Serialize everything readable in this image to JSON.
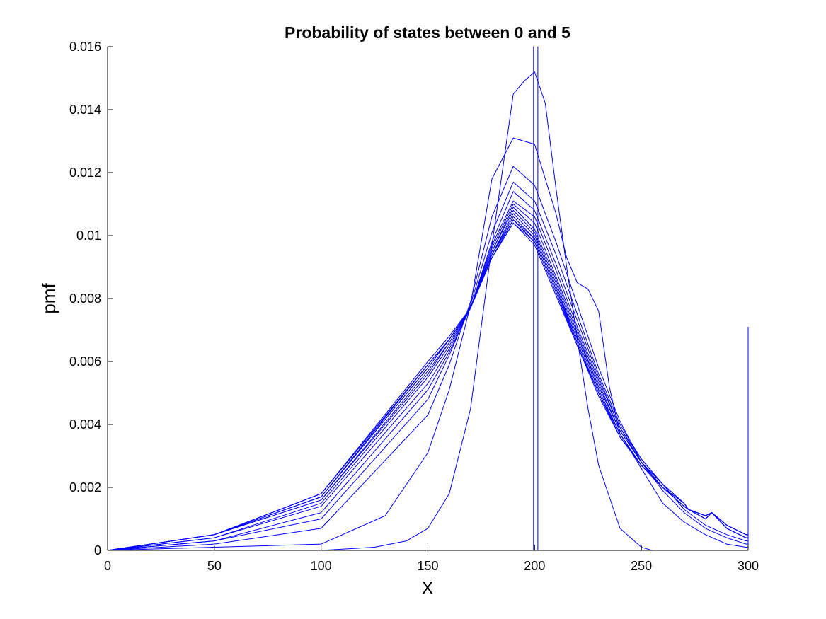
{
  "chart_data": {
    "type": "line",
    "title": "Probability of states between 0 and 5",
    "xlabel": "X",
    "ylabel": "pmf",
    "xlim": [
      0,
      300
    ],
    "ylim": [
      0,
      0.016
    ],
    "xticks": [
      0,
      50,
      100,
      150,
      200,
      250,
      300
    ],
    "xtick_labels": [
      "0",
      "50",
      "100",
      "150",
      "200",
      "250",
      "300"
    ],
    "yticks": [
      0,
      0.002,
      0.004,
      0.006,
      0.008,
      0.01,
      0.012,
      0.014,
      0.016
    ],
    "ytick_labels": [
      "0",
      "0.002",
      "0.004",
      "0.006",
      "0.008",
      "0.01",
      "0.012",
      "0.014",
      "0.016"
    ],
    "grid": false,
    "line_color": "#0000ff",
    "series": [
      {
        "x": [
          0,
          199.5,
          199.5,
          199.5,
          300
        ],
        "y": [
          0,
          0,
          0.016,
          0,
          0
        ]
      },
      {
        "x": [
          0,
          201.5,
          201.5,
          201.5,
          300
        ],
        "y": [
          0,
          0,
          0.016,
          0,
          0
        ]
      },
      {
        "x": [
          0,
          50,
          100,
          125,
          140,
          150,
          160,
          170,
          180,
          190,
          195,
          200,
          205,
          210,
          215,
          220,
          225,
          230,
          240,
          250,
          255,
          260,
          270,
          280,
          290,
          299,
          300,
          300
        ],
        "y": [
          0,
          0,
          0,
          0.0001,
          0.0003,
          0.0007,
          0.0018,
          0.0045,
          0.0097,
          0.0145,
          0.0149,
          0.0152,
          0.0142,
          0.0115,
          0.009,
          0.0067,
          0.0045,
          0.0027,
          0.0007,
          0.0001,
          0,
          0,
          0,
          0,
          0,
          0,
          0,
          0
        ]
      },
      {
        "x": [
          0,
          50,
          100,
          130,
          150,
          160,
          170,
          175,
          180,
          190,
          200,
          210,
          215,
          220,
          225,
          230,
          235,
          240,
          250,
          260,
          270,
          280,
          290,
          299,
          300,
          300
        ],
        "y": [
          0,
          0.0001,
          0.0002,
          0.0011,
          0.0031,
          0.0051,
          0.0078,
          0.0098,
          0.0118,
          0.0131,
          0.0129,
          0.0107,
          0.0093,
          0.0085,
          0.0083,
          0.0076,
          0.0052,
          0.0037,
          0.0026,
          0.0015,
          0.0009,
          0.0005,
          0.0002,
          0.0001,
          0.0001,
          0.0071
        ]
      },
      {
        "x": [
          0,
          50,
          100,
          150,
          160,
          170,
          180,
          190,
          200,
          210,
          220,
          230,
          240,
          250,
          260,
          270,
          280,
          290,
          299,
          300,
          300
        ],
        "y": [
          0,
          0.0002,
          0.0007,
          0.0043,
          0.0059,
          0.0079,
          0.0106,
          0.0122,
          0.0116,
          0.0098,
          0.0078,
          0.0058,
          0.0041,
          0.0028,
          0.0019,
          0.0012,
          0.0007,
          0.0004,
          0.0002,
          0.0002,
          0.0046
        ]
      },
      {
        "x": [
          0,
          50,
          100,
          150,
          160,
          170,
          180,
          190,
          200,
          210,
          220,
          230,
          240,
          250,
          260,
          270,
          280,
          290,
          299,
          300,
          300
        ],
        "y": [
          0,
          0.0003,
          0.001,
          0.0048,
          0.0062,
          0.0078,
          0.0101,
          0.0117,
          0.0111,
          0.0094,
          0.0075,
          0.0056,
          0.004,
          0.0029,
          0.0021,
          0.0013,
          0.0008,
          0.0005,
          0.0003,
          0.0003,
          0.0015
        ]
      },
      {
        "x": [
          0,
          50,
          100,
          150,
          160,
          170,
          180,
          190,
          200,
          210,
          220,
          230,
          240,
          250,
          260,
          270,
          272,
          280,
          283,
          290,
          299,
          300
        ],
        "y": [
          0,
          0.0003,
          0.0012,
          0.0051,
          0.0063,
          0.0077,
          0.0098,
          0.0114,
          0.0108,
          0.0091,
          0.0073,
          0.0055,
          0.0039,
          0.0029,
          0.0021,
          0.0015,
          0.0013,
          0.0011,
          0.0012,
          0.0008,
          0.0005,
          0.0005
        ]
      },
      {
        "x": [
          0,
          50,
          100,
          150,
          160,
          170,
          180,
          190,
          200,
          210,
          220,
          230,
          240,
          250,
          260,
          270,
          272,
          280,
          283,
          290,
          299,
          300
        ],
        "y": [
          0,
          0.0004,
          0.0014,
          0.0053,
          0.0064,
          0.0077,
          0.0097,
          0.0111,
          0.0106,
          0.0089,
          0.0071,
          0.0054,
          0.0039,
          0.0028,
          0.0021,
          0.0015,
          0.0013,
          0.0011,
          0.0012,
          0.0008,
          0.0005,
          0.0005
        ]
      },
      {
        "x": [
          0,
          50,
          100,
          150,
          160,
          170,
          180,
          190,
          200,
          210,
          220,
          230,
          240,
          250,
          260,
          270,
          272,
          280,
          283,
          290,
          299,
          300
        ],
        "y": [
          0,
          0.0004,
          0.0015,
          0.0055,
          0.0065,
          0.0077,
          0.0096,
          0.011,
          0.0104,
          0.0087,
          0.007,
          0.0053,
          0.0038,
          0.0028,
          0.0021,
          0.0015,
          0.0013,
          0.0011,
          0.0012,
          0.0008,
          0.0005,
          0.0005
        ]
      },
      {
        "x": [
          0,
          50,
          100,
          150,
          160,
          170,
          180,
          190,
          200,
          210,
          220,
          230,
          240,
          250,
          260,
          270,
          272,
          280,
          283,
          290,
          299,
          300
        ],
        "y": [
          0,
          0.0005,
          0.0016,
          0.0056,
          0.0066,
          0.0077,
          0.0095,
          0.0109,
          0.0102,
          0.0086,
          0.0069,
          0.0052,
          0.0038,
          0.0028,
          0.002,
          0.0015,
          0.0013,
          0.0011,
          0.0012,
          0.0008,
          0.0005,
          0.0005
        ]
      },
      {
        "x": [
          0,
          50,
          100,
          150,
          160,
          170,
          180,
          190,
          200,
          210,
          220,
          230,
          240,
          250,
          260,
          270,
          272,
          280,
          283,
          290,
          299,
          300
        ],
        "y": [
          0,
          0.0005,
          0.0016,
          0.0057,
          0.0066,
          0.0077,
          0.0095,
          0.0108,
          0.0101,
          0.0085,
          0.0068,
          0.0052,
          0.0038,
          0.0028,
          0.002,
          0.0015,
          0.0013,
          0.0011,
          0.0012,
          0.0008,
          0.0005,
          0.0005
        ]
      },
      {
        "x": [
          0,
          50,
          100,
          150,
          160,
          170,
          180,
          190,
          200,
          210,
          220,
          230,
          240,
          250,
          260,
          270,
          272,
          280,
          283,
          290,
          299,
          300
        ],
        "y": [
          0,
          0.0005,
          0.0017,
          0.0058,
          0.0067,
          0.0077,
          0.0094,
          0.0107,
          0.01,
          0.0084,
          0.0067,
          0.0051,
          0.0037,
          0.0027,
          0.002,
          0.0014,
          0.0013,
          0.001,
          0.0012,
          0.0007,
          0.0004,
          0.0004
        ]
      },
      {
        "x": [
          0,
          50,
          100,
          150,
          160,
          170,
          180,
          190,
          200,
          210,
          220,
          230,
          240,
          250,
          260,
          270,
          272,
          280,
          283,
          290,
          299,
          300
        ],
        "y": [
          0,
          0.0005,
          0.0017,
          0.0058,
          0.0067,
          0.0077,
          0.0094,
          0.0106,
          0.0099,
          0.0083,
          0.0067,
          0.0051,
          0.0037,
          0.0027,
          0.002,
          0.0014,
          0.0013,
          0.001,
          0.0012,
          0.0007,
          0.0004,
          0.0004
        ]
      },
      {
        "x": [
          0,
          50,
          100,
          150,
          160,
          170,
          180,
          190,
          200,
          210,
          220,
          230,
          240,
          250,
          260,
          270,
          272,
          280,
          283,
          290,
          299,
          300
        ],
        "y": [
          0,
          0.0005,
          0.0017,
          0.0059,
          0.0067,
          0.0077,
          0.0094,
          0.0105,
          0.0099,
          0.0083,
          0.0066,
          0.005,
          0.0037,
          0.0027,
          0.002,
          0.0014,
          0.0013,
          0.001,
          0.0012,
          0.0007,
          0.0004,
          0.0004
        ]
      },
      {
        "x": [
          0,
          50,
          100,
          150,
          160,
          170,
          180,
          190,
          200,
          210,
          220,
          230,
          240,
          250,
          260,
          270,
          272,
          280,
          283,
          290,
          299,
          300
        ],
        "y": [
          0,
          0.0005,
          0.0018,
          0.0059,
          0.0067,
          0.0077,
          0.0093,
          0.0105,
          0.0098,
          0.0082,
          0.0066,
          0.005,
          0.0036,
          0.0027,
          0.002,
          0.0014,
          0.0013,
          0.001,
          0.0012,
          0.0007,
          0.0004,
          0.0004
        ]
      },
      {
        "x": [
          0,
          50,
          100,
          150,
          160,
          170,
          180,
          190,
          200,
          210,
          220,
          230,
          240,
          250,
          260,
          270,
          272,
          280,
          283,
          290,
          299,
          300
        ],
        "y": [
          0,
          0.0005,
          0.0018,
          0.0059,
          0.0067,
          0.0077,
          0.0093,
          0.0104,
          0.0098,
          0.0082,
          0.0065,
          0.005,
          0.0036,
          0.0027,
          0.002,
          0.0014,
          0.0013,
          0.001,
          0.0012,
          0.0007,
          0.0004,
          0.0004
        ]
      },
      {
        "x": [
          0,
          50,
          100,
          150,
          160,
          170,
          180,
          190,
          200,
          210,
          220,
          230,
          240,
          250,
          260,
          270,
          272,
          280,
          283,
          290,
          299,
          300
        ],
        "y": [
          0,
          0.0005,
          0.0018,
          0.006,
          0.0068,
          0.0077,
          0.0093,
          0.0104,
          0.0097,
          0.0081,
          0.0065,
          0.0049,
          0.0036,
          0.0027,
          0.002,
          0.0014,
          0.0013,
          0.001,
          0.0012,
          0.0007,
          0.0004,
          0.0004
        ]
      }
    ]
  }
}
